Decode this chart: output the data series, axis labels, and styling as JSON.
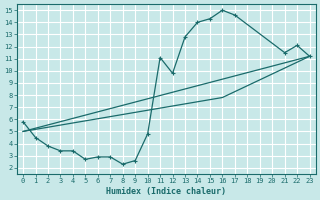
{
  "xlabel": "Humidex (Indice chaleur)",
  "xlim": [
    -0.5,
    23.5
  ],
  "ylim": [
    1.5,
    15.5
  ],
  "xticks": [
    0,
    1,
    2,
    3,
    4,
    5,
    6,
    7,
    8,
    9,
    10,
    11,
    12,
    13,
    14,
    15,
    16,
    17,
    18,
    19,
    20,
    21,
    22,
    23
  ],
  "yticks": [
    2,
    3,
    4,
    5,
    6,
    7,
    8,
    9,
    10,
    11,
    12,
    13,
    14,
    15
  ],
  "bg_color": "#c8e8e8",
  "line_color": "#1a6b6b",
  "grid_color": "#ffffff",
  "curve_x": [
    0,
    1,
    2,
    3,
    4,
    5,
    6,
    7,
    8,
    9,
    10,
    11,
    12,
    13,
    14,
    15,
    16,
    17,
    21,
    22,
    23
  ],
  "curve_y": [
    5.8,
    4.5,
    3.8,
    3.4,
    3.4,
    2.7,
    2.9,
    2.9,
    2.3,
    2.6,
    4.8,
    11.1,
    9.8,
    12.8,
    14.0,
    14.3,
    15.0,
    14.6,
    11.5,
    12.1,
    11.2
  ],
  "line2_x": [
    0,
    23
  ],
  "line2_y": [
    5.0,
    11.2
  ],
  "line3_x": [
    0,
    16,
    23
  ],
  "line3_y": [
    5.0,
    7.8,
    11.2
  ]
}
